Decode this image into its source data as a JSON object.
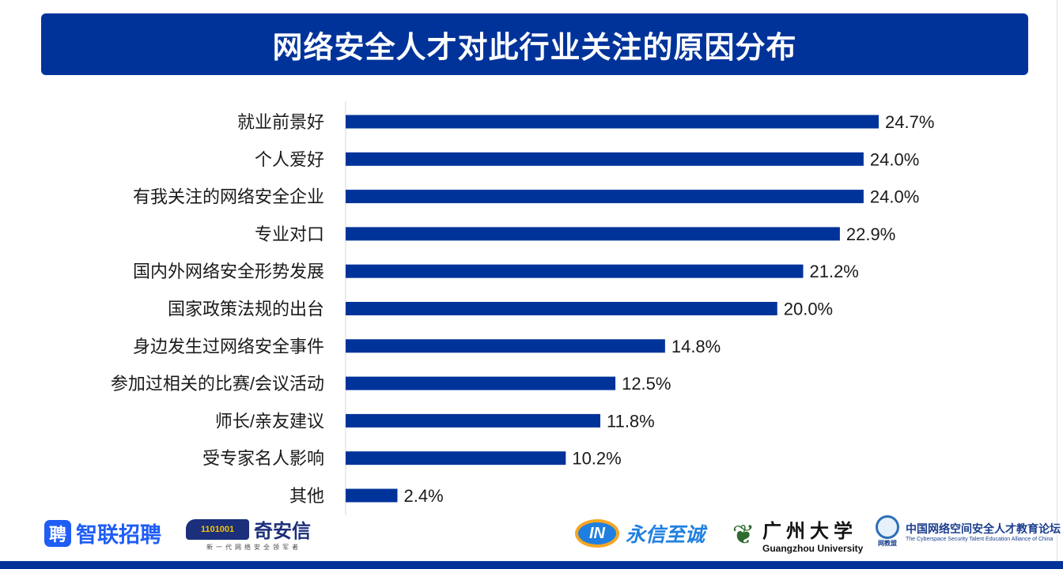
{
  "colors": {
    "bar": "#003399",
    "title_bg": "#003399",
    "text": "#1a1a1a"
  },
  "chart_data": {
    "type": "bar",
    "orientation": "horizontal",
    "title": "网络安全人才对此行业关注的原因分布",
    "categories": [
      "就业前景好",
      "个人爱好",
      "有我关注的网络安全企业",
      "专业对口",
      "国内外网络安全形势发展",
      "国家政策法规的出台",
      "身边发生过网络安全事件",
      "参加过相关的比赛/会议活动",
      "师长/亲友建议",
      "受专家名人影响",
      "其他"
    ],
    "values": [
      24.7,
      24.0,
      24.0,
      22.9,
      21.2,
      20.0,
      14.8,
      12.5,
      11.8,
      10.2,
      2.4
    ],
    "value_labels": [
      "24.7%",
      "24.0%",
      "24.0%",
      "22.9%",
      "21.2%",
      "20.0%",
      "14.8%",
      "12.5%",
      "11.8%",
      "10.2%",
      "2.4%"
    ],
    "unit": "%",
    "xlim": [
      0,
      26
    ],
    "grid": false,
    "legend": "none"
  },
  "logos": {
    "zhaopin": {
      "icon_text": "聘",
      "name": "智联招聘"
    },
    "qianxin": {
      "name": "奇安信",
      "tagline": "新一代网络安全领军者"
    },
    "yxzc": {
      "icon_text": "IN",
      "name": "永信至诚"
    },
    "gzhu": {
      "name": "广州大学",
      "en": "Guangzhou University"
    },
    "alliance": {
      "name": "中国网络空间安全人才教育论坛",
      "en": "The Cyberspace Security Talent Education Alliance of China",
      "short": "网教盟"
    }
  }
}
